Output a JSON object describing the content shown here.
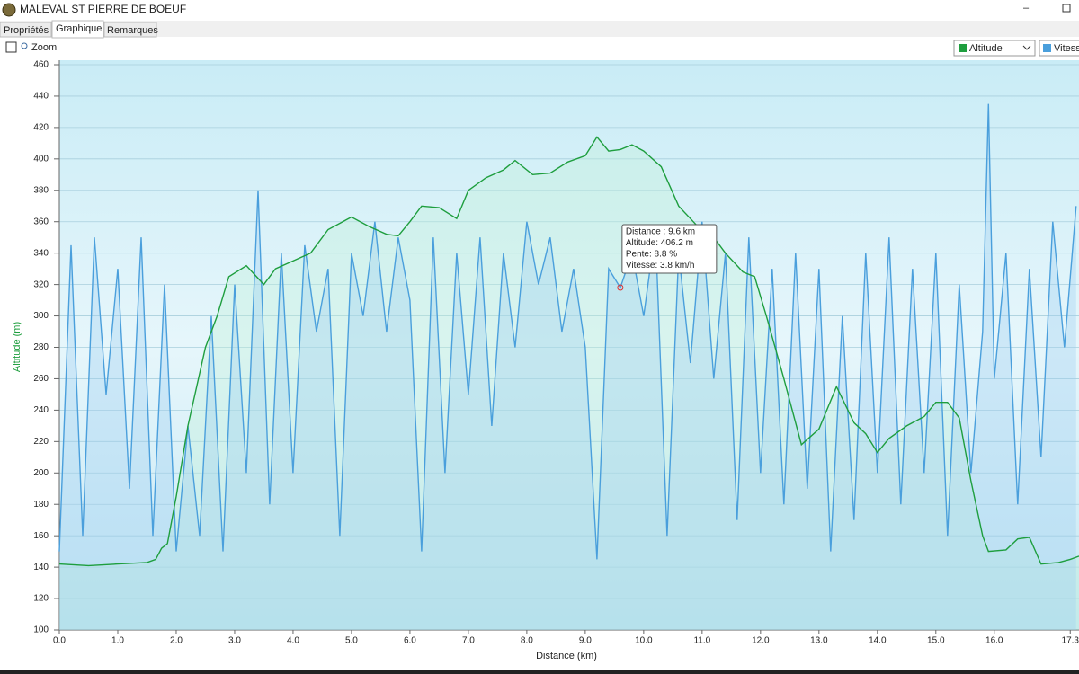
{
  "window": {
    "title": "MALEVAL ST PIERRE DE BOEUF",
    "tabs": [
      "Propriétés",
      "Graphique",
      "Remarques"
    ],
    "zoom_label": "Zoom"
  },
  "chart_data": {
    "type": "line",
    "xlabel": "Distance   (km)",
    "ylabel": "Altitude (m)",
    "xlim": [
      0,
      17.45
    ],
    "ylim": [
      100,
      460
    ],
    "xticks": [
      {
        "value": 0,
        "label": "0.0"
      },
      {
        "value": 1,
        "label": "1.0"
      },
      {
        "value": 2,
        "label": "2.0"
      },
      {
        "value": 3,
        "label": "3.0"
      },
      {
        "value": 4,
        "label": "4.0"
      },
      {
        "value": 5,
        "label": "5.0"
      },
      {
        "value": 6,
        "label": "6.0"
      },
      {
        "value": 7,
        "label": "7.0"
      },
      {
        "value": 8,
        "label": "8.0"
      },
      {
        "value": 9,
        "label": "9.0"
      },
      {
        "value": 10,
        "label": "10.0"
      },
      {
        "value": 11,
        "label": "11.0"
      },
      {
        "value": 12,
        "label": "12.0"
      },
      {
        "value": 13,
        "label": "13.0"
      },
      {
        "value": 14,
        "label": "14.0"
      },
      {
        "value": 15,
        "label": "15.0"
      },
      {
        "value": 16,
        "label": "16.0"
      },
      {
        "value": 17.3,
        "label": "17.3"
      }
    ],
    "yticks": [
      100,
      120,
      140,
      160,
      180,
      200,
      220,
      240,
      260,
      280,
      300,
      320,
      340,
      360,
      380,
      400,
      420,
      440,
      460
    ],
    "grid": true,
    "tooltip": {
      "x": 9.6,
      "lines": [
        "Distance  : 9.6 km",
        "Altitude: 406.2 m",
        "Pente: 8.8 %",
        "Vitesse: 3.8 km/h"
      ]
    },
    "series": [
      {
        "name": "Altitude",
        "color": "#1e9e3e",
        "x": [
          0,
          0.5,
          1.0,
          1.5,
          1.65,
          1.75,
          1.85,
          2.0,
          2.2,
          2.5,
          2.7,
          2.9,
          3.2,
          3.5,
          3.7,
          4.0,
          4.3,
          4.6,
          5.0,
          5.3,
          5.6,
          5.8,
          6.0,
          6.2,
          6.5,
          6.8,
          7.0,
          7.3,
          7.6,
          7.8,
          8.1,
          8.4,
          8.7,
          9.0,
          9.2,
          9.4,
          9.6,
          9.8,
          10.0,
          10.3,
          10.6,
          10.9,
          11.1,
          11.4,
          11.7,
          11.9,
          12.1,
          12.4,
          12.7,
          13.0,
          13.3,
          13.6,
          13.8,
          14.0,
          14.2,
          14.5,
          14.8,
          15.0,
          15.2,
          15.4,
          15.6,
          15.8,
          15.9,
          16.2,
          16.4,
          16.6,
          16.8,
          17.1,
          17.3,
          17.45
        ],
        "values": [
          142,
          141,
          142,
          143,
          145,
          152,
          155,
          185,
          230,
          280,
          300,
          325,
          332,
          320,
          330,
          335,
          340,
          355,
          363,
          357,
          352,
          351,
          360,
          370,
          369,
          362,
          380,
          388,
          393,
          399,
          390,
          391,
          398,
          402,
          414,
          405,
          406,
          409,
          405,
          395,
          370,
          358,
          355,
          340,
          328,
          325,
          300,
          260,
          218,
          228,
          255,
          232,
          225,
          213,
          222,
          230,
          236,
          245,
          245,
          235,
          195,
          160,
          150,
          151,
          158,
          159,
          142,
          143,
          145,
          147
        ]
      },
      {
        "name": "Vitess",
        "color": "#4a9fdc",
        "x": [
          0,
          0.2,
          0.4,
          0.6,
          0.8,
          1.0,
          1.2,
          1.4,
          1.6,
          1.8,
          2.0,
          2.2,
          2.4,
          2.6,
          2.8,
          3.0,
          3.2,
          3.4,
          3.6,
          3.8,
          4.0,
          4.2,
          4.4,
          4.6,
          4.8,
          5.0,
          5.2,
          5.4,
          5.6,
          5.8,
          6.0,
          6.2,
          6.4,
          6.6,
          6.8,
          7.0,
          7.2,
          7.4,
          7.6,
          7.8,
          8.0,
          8.2,
          8.4,
          8.6,
          8.8,
          9.0,
          9.2,
          9.4,
          9.6,
          9.8,
          10.0,
          10.2,
          10.4,
          10.6,
          10.8,
          11.0,
          11.2,
          11.4,
          11.6,
          11.8,
          12.0,
          12.2,
          12.4,
          12.6,
          12.8,
          13.0,
          13.2,
          13.4,
          13.6,
          13.8,
          14.0,
          14.2,
          14.4,
          14.6,
          14.8,
          15.0,
          15.2,
          15.4,
          15.6,
          15.8,
          15.9,
          16.0,
          16.2,
          16.4,
          16.6,
          16.8,
          17.0,
          17.2,
          17.4
        ],
        "values": [
          150,
          345,
          160,
          350,
          250,
          330,
          190,
          350,
          160,
          320,
          150,
          230,
          160,
          300,
          150,
          320,
          200,
          380,
          180,
          340,
          200,
          345,
          290,
          330,
          160,
          340,
          300,
          360,
          290,
          350,
          310,
          150,
          350,
          200,
          340,
          250,
          350,
          230,
          340,
          280,
          360,
          320,
          350,
          290,
          330,
          280,
          145,
          330,
          318,
          340,
          300,
          355,
          160,
          340,
          270,
          360,
          260,
          340,
          170,
          350,
          200,
          330,
          180,
          340,
          190,
          330,
          150,
          300,
          170,
          340,
          200,
          350,
          180,
          330,
          200,
          340,
          160,
          320,
          200,
          290,
          435,
          260,
          340,
          180,
          330,
          210,
          360,
          280,
          370
        ]
      }
    ]
  }
}
